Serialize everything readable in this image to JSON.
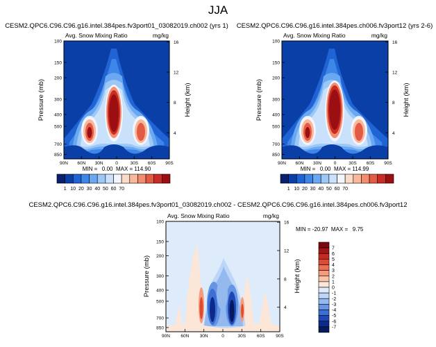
{
  "figure": {
    "title": "JJA"
  },
  "chart_data": [
    {
      "type": "heatmap",
      "panel": "top-left",
      "title": "CESM2.QPC6.C96.C96.g16.intel.384pes.fv3port01_03082019.ch002 (yrs 1)",
      "left_string": "Avg. Snow Mixing Ratio",
      "right_string": "mg/kg",
      "ylabel": "Pressure (mb)",
      "ylabel_right": "Height (km)",
      "x_ticks": [
        "90N",
        "60N",
        "30N",
        "0",
        "30S",
        "60S",
        "90S"
      ],
      "x_range": [
        90,
        -90
      ],
      "y_ticks": [
        "100",
        "150",
        "200",
        "300",
        "400",
        "500",
        "700",
        "850"
      ],
      "y_tick_values": [
        100,
        150,
        200,
        300,
        400,
        500,
        700,
        850
      ],
      "y_range": [
        100,
        925
      ],
      "y_scale": "log",
      "height_ticks": [
        "16",
        "12",
        "8",
        "4"
      ],
      "height_tick_values": [
        16,
        12,
        8,
        4
      ],
      "stats": "MIN =   0.00  MAX = 114.90",
      "min": 0.0,
      "max": 114.9
    },
    {
      "type": "heatmap",
      "panel": "top-right",
      "title": "CESM2.QPC6.C96.C96.g16.intel.384pes.ch006.fv3port12 (yrs 2-6)",
      "left_string": "Avg. Snow Mixing Ratio",
      "right_string": "mg/kg",
      "ylabel": "Pressure (mb)",
      "ylabel_right": "Height (km)",
      "x_ticks": [
        "90N",
        "60N",
        "30N",
        "0",
        "30S",
        "60S",
        "90S"
      ],
      "x_range": [
        90,
        -90
      ],
      "y_ticks": [
        "100",
        "150",
        "200",
        "300",
        "400",
        "500",
        "700",
        "850"
      ],
      "y_tick_values": [
        100,
        150,
        200,
        300,
        400,
        500,
        700,
        850
      ],
      "y_range": [
        100,
        925
      ],
      "y_scale": "log",
      "height_ticks": [
        "16",
        "12",
        "8",
        "4"
      ],
      "height_tick_values": [
        16,
        12,
        8,
        4
      ],
      "stats": "MIN =   0.00  MAX = 114.99",
      "min": 0.0,
      "max": 114.99
    },
    {
      "type": "heatmap",
      "panel": "bottom-difference",
      "title": "CESM2.QPC6.C96.C96.g16.intel.384pes.fv3port01_03082019.ch002 - CESM2.QPC6.C96.C96.g16.intel.384pes.ch006.fv3port12",
      "left_string": "Avg. Snow Mixing Ratio",
      "right_string": "mg/kg",
      "ylabel": "Pressure (mb)",
      "ylabel_right": "Height (km)",
      "x_ticks": [
        "90N",
        "60N",
        "30N",
        "0",
        "30S",
        "60S",
        "90S"
      ],
      "x_range": [
        90,
        -90
      ],
      "y_ticks": [
        "100",
        "150",
        "200",
        "300",
        "400",
        "500",
        "700",
        "850"
      ],
      "y_tick_values": [
        100,
        150,
        200,
        300,
        400,
        500,
        700,
        850
      ],
      "y_range": [
        100,
        925
      ],
      "y_scale": "log",
      "height_ticks": [
        "16",
        "12",
        "8",
        "4"
      ],
      "height_tick_values": [
        16,
        12,
        8,
        4
      ],
      "stats": "MIN = -20.97  MAX =   9.75",
      "min": -20.97,
      "max": 9.75
    }
  ],
  "colorbars": {
    "top": {
      "labels": [
        "1",
        "10",
        "20",
        "30",
        "40",
        "50",
        "60",
        "70"
      ],
      "colors": [
        "#08206e",
        "#0a3fa8",
        "#1f63d4",
        "#3e86e8",
        "#6aa8f2",
        "#9cc8f8",
        "#c9e1fb",
        "#f2f5fb",
        "#fbdcc9",
        "#f8b89c",
        "#f28e6e",
        "#e35b45",
        "#c92b25",
        "#9b0f13"
      ]
    },
    "diff": {
      "labels": [
        "7",
        "6",
        "5",
        "4",
        "3",
        "2",
        "1",
        "0",
        "-1",
        "-2",
        "-3",
        "-4",
        "-5",
        "-6",
        "-7"
      ],
      "colors": [
        "#7a0a0e",
        "#a31418",
        "#c62a22",
        "#de4a32",
        "#ec7152",
        "#f59b7c",
        "#f9c3a8",
        "#fce6d8",
        "#deebfb",
        "#bcd6f7",
        "#93b9ef",
        "#6595e3",
        "#3c6fd3",
        "#1f48b6",
        "#0c2a8c",
        "#061a5e"
      ]
    }
  }
}
